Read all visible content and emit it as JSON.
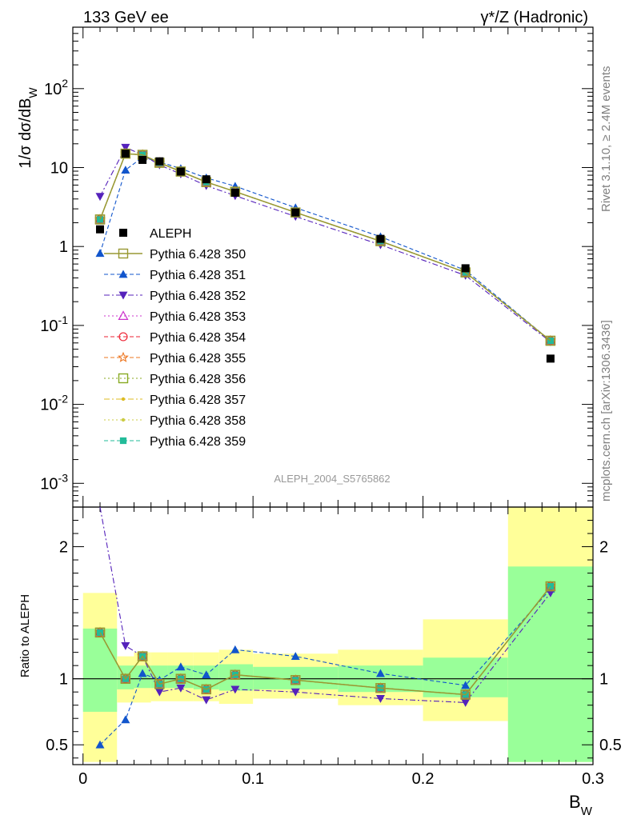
{
  "header": {
    "title_left": "133 GeV ee",
    "title_right": "γ*/Z (Hadronic)",
    "side_top": "Rivet 3.1.10, ≥ 2.4M events",
    "side_bottom": "mcplots.cern.ch [arXiv:1306.3436]",
    "analysis_id": "ALEPH_2004_S5765862"
  },
  "chart_data": [
    {
      "type": "line",
      "panel": "main",
      "ylabel": "1/σ dσ/dB_W",
      "yscale": "log",
      "ylim": [
        0.0005,
        600
      ],
      "xlim": [
        -0.006,
        0.3
      ],
      "ytick_labels": [
        "10^-3",
        "10^-2",
        "10^-1",
        "1",
        "10",
        "10^2"
      ],
      "legend": "left-middle",
      "x": [
        0.01,
        0.025,
        0.035,
        0.045,
        0.0575,
        0.0725,
        0.0895,
        0.125,
        0.175,
        0.225,
        0.275
      ],
      "data_series": {
        "name": "ALEPH",
        "values": [
          1.65,
          15.0,
          12.5,
          12.0,
          8.9,
          7.1,
          4.8,
          2.7,
          1.25,
          0.53,
          0.038
        ]
      },
      "series": [
        {
          "name": "Pythia 6.428 350",
          "color": "#999933",
          "marker": "open-square",
          "line": "solid",
          "width": 1.5,
          "values": [
            2.2,
            15.0,
            14.5,
            11.5,
            8.9,
            6.55,
            4.95,
            2.7,
            1.17,
            0.47,
            0.064
          ]
        },
        {
          "name": "Pythia 6.428 351",
          "color": "#1155cc",
          "marker": "triangle-up",
          "line": "dashed",
          "width": 1.1,
          "values": [
            0.82,
            9.3,
            13.5,
            11.8,
            9.7,
            7.4,
            5.8,
            3.1,
            1.33,
            0.5,
            0.064
          ]
        },
        {
          "name": "Pythia 6.428 352",
          "color": "#5522bb",
          "marker": "triangle-down",
          "line": "dashdot",
          "width": 1.1,
          "values": [
            4.3,
            18.0,
            14.5,
            10.8,
            8.3,
            5.9,
            4.4,
            2.4,
            1.05,
            0.43,
            0.062
          ]
        },
        {
          "name": "Pythia 6.428 353",
          "color": "#cc33cc",
          "marker": "open-triangle-up",
          "line": "dotted",
          "width": 1.1,
          "values": [
            2.2,
            15.0,
            14.5,
            11.5,
            8.9,
            6.55,
            4.95,
            2.7,
            1.17,
            0.47,
            0.064
          ]
        },
        {
          "name": "Pythia 6.428 354",
          "color": "#ee2233",
          "marker": "open-circle",
          "line": "dashed",
          "width": 1.1,
          "values": [
            2.2,
            15.0,
            14.5,
            11.5,
            8.9,
            6.55,
            4.95,
            2.7,
            1.17,
            0.47,
            0.064
          ]
        },
        {
          "name": "Pythia 6.428 355",
          "color": "#ee7722",
          "marker": "open-star",
          "line": "dashed",
          "width": 1.1,
          "values": [
            2.2,
            15.0,
            14.5,
            11.5,
            8.9,
            6.55,
            4.95,
            2.7,
            1.17,
            0.47,
            0.064
          ]
        },
        {
          "name": "Pythia 6.428 356",
          "color": "#88aa22",
          "marker": "open-square",
          "line": "dotted",
          "width": 1.1,
          "values": [
            2.2,
            15.0,
            14.5,
            11.5,
            8.9,
            6.55,
            4.95,
            2.7,
            1.17,
            0.47,
            0.064
          ]
        },
        {
          "name": "Pythia 6.428 357",
          "color": "#ddbb22",
          "marker": "dot",
          "line": "dashdot",
          "width": 1.1,
          "values": [
            2.2,
            15.0,
            14.5,
            11.5,
            8.9,
            6.55,
            4.95,
            2.7,
            1.17,
            0.47,
            0.064
          ]
        },
        {
          "name": "Pythia 6.428 358",
          "color": "#cccc44",
          "marker": "dot",
          "line": "dotted",
          "width": 1.1,
          "values": [
            2.2,
            15.0,
            14.5,
            11.5,
            8.9,
            6.55,
            4.95,
            2.7,
            1.17,
            0.47,
            0.064
          ]
        },
        {
          "name": "Pythia 6.428 359",
          "color": "#22bb99",
          "marker": "square",
          "line": "dashed",
          "width": 1.1,
          "values": [
            2.2,
            15.0,
            14.5,
            11.5,
            8.9,
            6.55,
            4.95,
            2.7,
            1.17,
            0.47,
            0.064
          ]
        }
      ]
    },
    {
      "type": "line",
      "panel": "ratio",
      "ylabel": "Ratio to ALEPH",
      "xlabel": "B_W",
      "ylim": [
        0.35,
        2.3
      ],
      "xlim": [
        -0.006,
        0.3
      ],
      "yticks": [
        0.5,
        1,
        2
      ],
      "ytick_labels": [
        "0.5",
        "1",
        "2"
      ],
      "xticks": [
        0,
        0.1,
        0.2,
        0.3
      ],
      "xtick_labels": [
        "0",
        "0.1",
        "0.2",
        "0.3"
      ],
      "bins": [
        {
          "lo": 0.0,
          "hi": 0.02,
          "inner": [
            0.75,
            1.38
          ],
          "outer": [
            0.37,
            1.65
          ]
        },
        {
          "lo": 0.02,
          "hi": 0.03,
          "inner": [
            0.92,
            1.1
          ],
          "outer": [
            0.82,
            1.17
          ]
        },
        {
          "lo": 0.03,
          "hi": 0.04,
          "inner": [
            0.93,
            1.1
          ],
          "outer": [
            0.82,
            1.2
          ]
        },
        {
          "lo": 0.04,
          "hi": 0.05,
          "inner": [
            0.93,
            1.1
          ],
          "outer": [
            0.83,
            1.2
          ]
        },
        {
          "lo": 0.05,
          "hi": 0.065,
          "inner": [
            0.93,
            1.1
          ],
          "outer": [
            0.83,
            1.2
          ]
        },
        {
          "lo": 0.065,
          "hi": 0.08,
          "inner": [
            0.92,
            1.1
          ],
          "outer": [
            0.83,
            1.2
          ]
        },
        {
          "lo": 0.08,
          "hi": 0.1,
          "inner": [
            0.91,
            1.11
          ],
          "outer": [
            0.81,
            1.22
          ]
        },
        {
          "lo": 0.1,
          "hi": 0.15,
          "inner": [
            0.92,
            1.09
          ],
          "outer": [
            0.85,
            1.19
          ]
        },
        {
          "lo": 0.15,
          "hi": 0.2,
          "inner": [
            0.9,
            1.1
          ],
          "outer": [
            0.8,
            1.22
          ]
        },
        {
          "lo": 0.2,
          "hi": 0.25,
          "inner": [
            0.86,
            1.16
          ],
          "outer": [
            0.68,
            1.45
          ]
        },
        {
          "lo": 0.25,
          "hi": 0.3,
          "inner": [
            0.37,
            1.85
          ],
          "outer": [
            0.37,
            2.3
          ]
        }
      ],
      "x": [
        0.01,
        0.025,
        0.035,
        0.045,
        0.0575,
        0.0725,
        0.0895,
        0.125,
        0.175,
        0.225,
        0.275
      ],
      "series": [
        {
          "name": "Pythia 6.428 350",
          "values": [
            1.35,
            1.0,
            1.17,
            0.96,
            1.0,
            0.92,
            1.03,
            0.99,
            0.93,
            0.88,
            1.7
          ]
        },
        {
          "name": "Pythia 6.428 351",
          "values": [
            0.5,
            0.69,
            1.04,
            0.99,
            1.09,
            1.03,
            1.22,
            1.17,
            1.04,
            0.95,
            1.68
          ]
        },
        {
          "name": "Pythia 6.428 352",
          "values": [
            2.35,
            1.25,
            1.17,
            0.9,
            0.93,
            0.84,
            0.92,
            0.9,
            0.85,
            0.82,
            1.65
          ]
        }
      ],
      "same_as_350": [
        "Pythia 6.428 353",
        "Pythia 6.428 354",
        "Pythia 6.428 355",
        "Pythia 6.428 356",
        "Pythia 6.428 357",
        "Pythia 6.428 358",
        "Pythia 6.428 359"
      ]
    }
  ]
}
